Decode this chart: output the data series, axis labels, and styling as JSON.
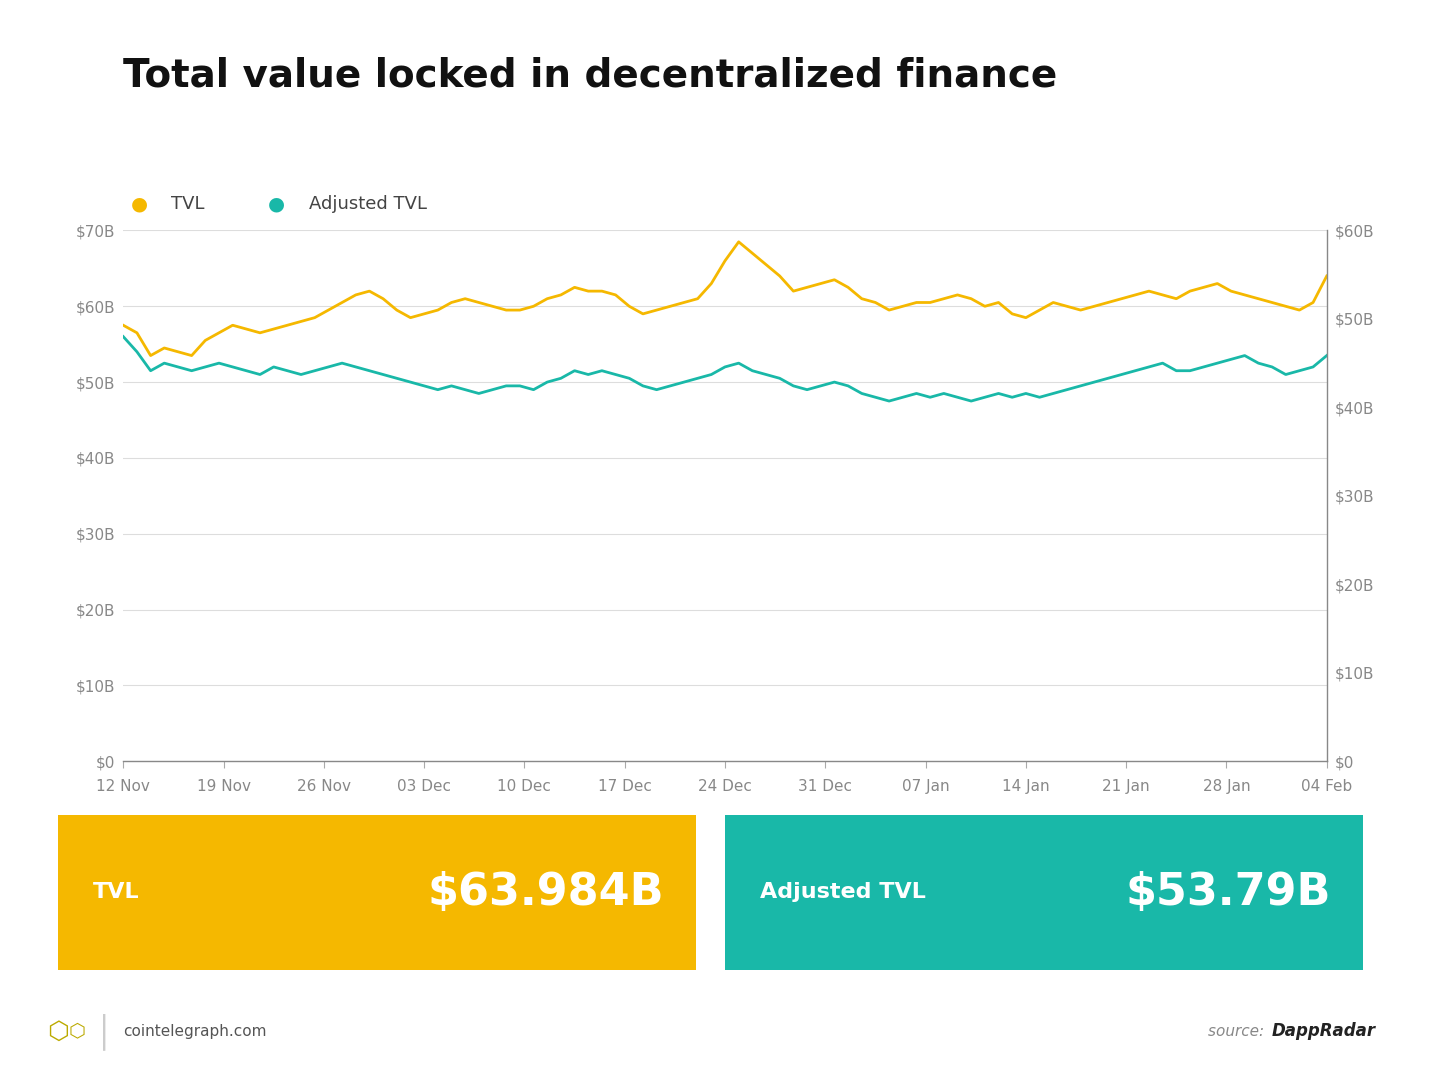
{
  "title": "Total value locked in decentralized finance",
  "title_fontsize": 28,
  "tvl_color": "#F5B800",
  "adj_tvl_color": "#19B8A8",
  "background_color": "#FFFFFF",
  "grid_color": "#DDDDDD",
  "tick_label_color": "#888888",
  "ylim_left": [
    0,
    70
  ],
  "ylim_right": [
    0,
    60
  ],
  "yticks_left": [
    0,
    10,
    20,
    30,
    40,
    50,
    60,
    70
  ],
  "yticks_right": [
    0,
    10,
    20,
    30,
    40,
    50,
    60
  ],
  "xtick_labels": [
    "12 Nov",
    "19 Nov",
    "26 Nov",
    "03 Dec",
    "10 Dec",
    "17 Dec",
    "24 Dec",
    "31 Dec",
    "07 Jan",
    "14 Jan",
    "21 Jan",
    "28 Jan",
    "04 Feb"
  ],
  "legend_labels": [
    "TVL",
    "Adjusted TVL"
  ],
  "tvl_value": "$63.984B",
  "adj_tvl_value": "$53.79B",
  "tvl_box_color": "#F5B800",
  "adj_tvl_box_color": "#19B8A8",
  "footer_left": "cointelegraph.com",
  "footer_right_italic": "source: ",
  "footer_right_bold": "DappRadar",
  "tvl_data": [
    57.5,
    56.5,
    53.5,
    54.5,
    54.0,
    53.5,
    55.5,
    56.5,
    57.5,
    57.0,
    56.5,
    57.0,
    57.5,
    58.0,
    58.5,
    59.5,
    60.5,
    61.5,
    62.0,
    61.0,
    59.5,
    58.5,
    59.0,
    59.5,
    60.5,
    61.0,
    60.5,
    60.0,
    59.5,
    59.5,
    60.0,
    61.0,
    61.5,
    62.5,
    62.0,
    62.0,
    61.5,
    60.0,
    59.0,
    59.5,
    60.0,
    60.5,
    61.0,
    63.0,
    66.0,
    68.5,
    67.0,
    65.5,
    64.0,
    62.0,
    62.5,
    63.0,
    63.5,
    62.5,
    61.0,
    60.5,
    59.5,
    60.0,
    60.5,
    60.5,
    61.0,
    61.5,
    61.0,
    60.0,
    60.5,
    59.0,
    58.5,
    59.5,
    60.5,
    60.0,
    59.5,
    60.0,
    60.5,
    61.0,
    61.5,
    62.0,
    61.5,
    61.0,
    62.0,
    62.5,
    63.0,
    62.0,
    61.5,
    61.0,
    60.5,
    60.0,
    59.5,
    60.5,
    64.0
  ],
  "adj_tvl_data": [
    56.0,
    54.0,
    51.5,
    52.5,
    52.0,
    51.5,
    52.0,
    52.5,
    52.0,
    51.5,
    51.0,
    52.0,
    51.5,
    51.0,
    51.5,
    52.0,
    52.5,
    52.0,
    51.5,
    51.0,
    50.5,
    50.0,
    49.5,
    49.0,
    49.5,
    49.0,
    48.5,
    49.0,
    49.5,
    49.5,
    49.0,
    50.0,
    50.5,
    51.5,
    51.0,
    51.5,
    51.0,
    50.5,
    49.5,
    49.0,
    49.5,
    50.0,
    50.5,
    51.0,
    52.0,
    52.5,
    51.5,
    51.0,
    50.5,
    49.5,
    49.0,
    49.5,
    50.0,
    49.5,
    48.5,
    48.0,
    47.5,
    48.0,
    48.5,
    48.0,
    48.5,
    48.0,
    47.5,
    48.0,
    48.5,
    48.0,
    48.5,
    48.0,
    48.5,
    49.0,
    49.5,
    50.0,
    50.5,
    51.0,
    51.5,
    52.0,
    52.5,
    51.5,
    51.5,
    52.0,
    52.5,
    53.0,
    53.5,
    52.5,
    52.0,
    51.0,
    51.5,
    52.0,
    53.5
  ]
}
